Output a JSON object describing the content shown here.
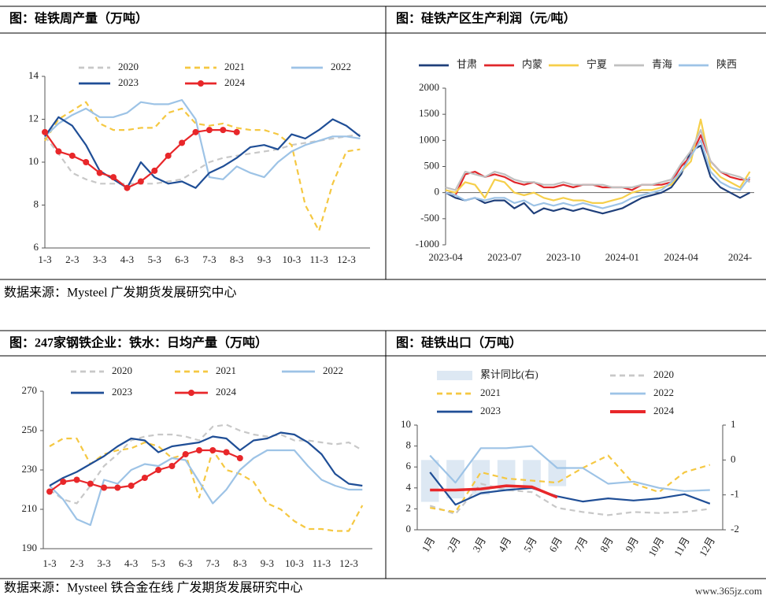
{
  "chart_data": [
    {
      "type": "line",
      "title": "图：硅铁周产量（万吨）",
      "categories": [
        "1-3",
        null,
        "2-3",
        null,
        "3-3",
        null,
        "4-3",
        null,
        "5-3",
        null,
        "6-3",
        null,
        "7-3",
        null,
        "8-3",
        null,
        "9-3",
        null,
        "10-3",
        null,
        "11-3",
        null,
        "12-3",
        null
      ],
      "ylim": [
        6,
        14
      ],
      "yticks": [
        6,
        8,
        10,
        12,
        14
      ],
      "series": [
        {
          "name": "2020",
          "color": "#c8c8c8",
          "line_style": "dashed",
          "values": [
            11.2,
            10.4,
            9.5,
            9.2,
            9.0,
            9.0,
            9.0,
            9.0,
            9.0,
            9.1,
            9.2,
            9.6,
            10.0,
            10.2,
            10.3,
            10.4,
            10.5,
            10.6,
            10.8,
            10.9,
            11.0,
            11.1,
            11.2,
            11.3
          ]
        },
        {
          "name": "2021",
          "color": "#f5c842",
          "line_style": "dashed",
          "values": [
            11.0,
            12.0,
            12.4,
            12.8,
            11.8,
            11.5,
            11.5,
            11.6,
            11.6,
            12.3,
            12.5,
            11.8,
            11.7,
            11.8,
            11.6,
            11.5,
            11.5,
            11.3,
            10.8,
            8.0,
            6.8,
            9.0,
            10.5,
            10.6
          ]
        },
        {
          "name": "2022",
          "color": "#9dc3e6",
          "line_style": "solid",
          "values": [
            11.2,
            11.8,
            12.2,
            12.5,
            12.1,
            12.1,
            12.3,
            12.8,
            12.7,
            12.7,
            12.9,
            12.0,
            9.3,
            9.2,
            9.8,
            9.5,
            9.3,
            10.0,
            10.5,
            10.8,
            11.0,
            11.2,
            11.2,
            11.1
          ]
        },
        {
          "name": "2023",
          "color": "#1f4e96",
          "line_style": "solid",
          "values": [
            11.2,
            12.1,
            11.7,
            10.8,
            9.6,
            9.2,
            8.8,
            10.0,
            9.3,
            9.0,
            9.1,
            8.8,
            9.5,
            9.8,
            10.2,
            10.7,
            10.8,
            10.6,
            11.3,
            11.1,
            11.5,
            12.0,
            11.7,
            11.2
          ]
        },
        {
          "name": "2024",
          "color": "#e8272a",
          "line_style": "solid",
          "marker": "circle",
          "values": [
            11.4,
            10.5,
            10.3,
            10.0,
            9.5,
            9.3,
            8.8,
            9.1,
            9.6,
            10.3,
            10.9,
            11.4,
            11.5,
            11.5,
            11.4,
            null,
            null,
            null,
            null,
            null,
            null,
            null,
            null,
            null
          ]
        }
      ]
    },
    {
      "type": "line",
      "title": "图：硅铁产区生产利润（元/吨）",
      "categories": [
        "2023-04",
        null,
        null,
        null,
        null,
        null,
        "2023-07",
        null,
        null,
        null,
        null,
        null,
        "2023-10",
        null,
        null,
        null,
        null,
        null,
        "2024-01",
        null,
        null,
        null,
        null,
        null,
        "2024-04",
        null,
        null,
        null,
        null,
        null,
        "2024-",
        null
      ],
      "ylim": [
        -1000,
        2000
      ],
      "yticks": [
        -1000,
        -500,
        0,
        500,
        1000,
        1500,
        2000
      ],
      "series": [
        {
          "name": "甘肃",
          "color": "#1f3f7a",
          "line_style": "solid",
          "values": [
            0,
            -100,
            -150,
            -100,
            -200,
            -150,
            -150,
            -300,
            -200,
            -400,
            -300,
            -350,
            -300,
            -350,
            -300,
            -350,
            -400,
            -350,
            -300,
            -200,
            -100,
            -50,
            0,
            100,
            350,
            800,
            900,
            300,
            100,
            0,
            -100,
            0
          ]
        },
        {
          "name": "内蒙",
          "color": "#e0262a",
          "line_style": "solid",
          "values": [
            0,
            -50,
            350,
            400,
            300,
            350,
            300,
            200,
            150,
            200,
            100,
            100,
            150,
            100,
            150,
            150,
            100,
            100,
            100,
            50,
            150,
            150,
            150,
            200,
            500,
            700,
            1100,
            600,
            400,
            300,
            250,
            250
          ]
        },
        {
          "name": "宁夏",
          "color": "#f6cf4a",
          "line_style": "solid",
          "values": [
            50,
            0,
            200,
            150,
            -100,
            250,
            200,
            0,
            -50,
            0,
            -100,
            -150,
            -100,
            -150,
            -150,
            -200,
            -200,
            -150,
            -100,
            0,
            50,
            50,
            100,
            150,
            400,
            600,
            1400,
            500,
            300,
            200,
            100,
            400
          ]
        },
        {
          "name": "青海",
          "color": "#c0c0c0",
          "line_style": "solid",
          "values": [
            100,
            50,
            400,
            350,
            300,
            400,
            350,
            250,
            200,
            200,
            150,
            150,
            200,
            150,
            150,
            150,
            150,
            100,
            100,
            100,
            150,
            150,
            200,
            250,
            550,
            800,
            1200,
            600,
            400,
            350,
            300,
            200
          ]
        },
        {
          "name": "陕西",
          "color": "#9dc3e6",
          "line_style": "solid",
          "values": [
            0,
            -50,
            -150,
            -100,
            -150,
            -100,
            -100,
            -200,
            -150,
            -250,
            -200,
            -250,
            -200,
            -250,
            -200,
            -250,
            -300,
            -250,
            -200,
            -100,
            -50,
            0,
            50,
            200,
            400,
            700,
            1000,
            400,
            200,
            100,
            50,
            300
          ]
        }
      ]
    },
    {
      "type": "line",
      "title": "图：247家钢铁企业：铁水：日均产量（万吨）",
      "categories": [
        "1-3",
        null,
        "2-3",
        null,
        "3-3",
        null,
        "4-3",
        null,
        "5-3",
        null,
        "6-3",
        null,
        "7-3",
        null,
        "8-3",
        null,
        "9-3",
        null,
        "10-3",
        null,
        "11-3",
        null,
        "12-3",
        null
      ],
      "ylim": [
        190,
        270
      ],
      "yticks": [
        190,
        210,
        230,
        250,
        270
      ],
      "series": [
        {
          "name": "2020",
          "color": "#c8c8c8",
          "line_style": "dashed",
          "values": [
            220,
            215,
            213,
            222,
            232,
            238,
            245,
            247,
            248,
            248,
            247,
            245,
            252,
            253,
            250,
            248,
            247,
            248,
            245,
            245,
            244,
            243,
            244,
            240
          ]
        },
        {
          "name": "2021",
          "color": "#f5c842",
          "line_style": "dashed",
          "values": [
            242,
            246,
            246,
            233,
            238,
            240,
            241,
            244,
            242,
            236,
            238,
            216,
            240,
            230,
            228,
            224,
            213,
            210,
            204,
            200,
            200,
            199,
            199,
            212
          ]
        },
        {
          "name": "2022",
          "color": "#9dc3e6",
          "line_style": "solid",
          "values": [
            222,
            215,
            205,
            202,
            225,
            223,
            230,
            233,
            232,
            236,
            235,
            224,
            213,
            220,
            230,
            236,
            240,
            240,
            240,
            232,
            225,
            222,
            220,
            220
          ]
        },
        {
          "name": "2023",
          "color": "#1f4e96",
          "line_style": "solid",
          "values": [
            222,
            226,
            229,
            233,
            237,
            242,
            246,
            245,
            239,
            242,
            243,
            244,
            247,
            246,
            240,
            245,
            246,
            249,
            248,
            244,
            238,
            228,
            223,
            222
          ]
        },
        {
          "name": "2024",
          "color": "#e8272a",
          "line_style": "solid",
          "marker": "circle",
          "values": [
            219,
            224,
            225,
            223,
            221,
            221,
            222,
            226,
            230,
            232,
            238,
            240,
            240,
            239,
            236,
            null,
            null,
            null,
            null,
            null,
            null,
            null,
            null,
            null
          ]
        }
      ]
    },
    {
      "type": "line",
      "title": "图：硅铁出口（万吨）",
      "categories": [
        "1月",
        "2月",
        "3月",
        "4月",
        "5月",
        "6月",
        "7月",
        "8月",
        "9月",
        "10月",
        "11月",
        "12月"
      ],
      "ylim": [
        0,
        10
      ],
      "yticks": [
        0,
        2,
        4,
        6,
        8,
        10
      ],
      "y2lim": [
        -2,
        1
      ],
      "y2ticks": [
        -2,
        -1,
        0,
        1
      ],
      "series": [
        {
          "name": "累计同比(右)",
          "type": "bar",
          "axis": "y2",
          "color": "#dde8f3",
          "values": [
            -1.2,
            -1.1,
            -1.0,
            -0.9,
            -0.85,
            -0.75,
            null,
            null,
            null,
            null,
            null,
            null
          ]
        },
        {
          "name": "2020",
          "color": "#c8c8c8",
          "line_style": "dashed",
          "values": [
            2.3,
            1.5,
            4.4,
            3.8,
            3.6,
            2.1,
            1.7,
            1.4,
            1.7,
            1.6,
            1.7,
            2.0
          ]
        },
        {
          "name": "2021",
          "color": "#f5c842",
          "line_style": "dashed",
          "values": [
            2.1,
            1.7,
            5.5,
            4.9,
            4.7,
            4.5,
            5.9,
            7.1,
            4.4,
            3.6,
            5.5,
            6.2
          ]
        },
        {
          "name": "2022",
          "color": "#9dc3e6",
          "line_style": "solid",
          "values": [
            7.1,
            4.5,
            7.8,
            7.8,
            8.0,
            5.9,
            5.9,
            4.4,
            4.6,
            4.0,
            3.7,
            3.8
          ]
        },
        {
          "name": "2023",
          "color": "#1f4e96",
          "line_style": "solid",
          "values": [
            5.5,
            2.4,
            3.5,
            3.8,
            4.0,
            3.2,
            2.7,
            3.0,
            2.8,
            3.0,
            3.4,
            2.5
          ]
        },
        {
          "name": "2024",
          "color": "#e8272a",
          "line_style": "thick",
          "values": [
            3.8,
            3.8,
            3.9,
            4.2,
            4.1,
            3.1,
            null,
            null,
            null,
            null,
            null,
            null
          ]
        }
      ]
    }
  ],
  "sources": [
    "数据来源：Mysteel 广发期货发展研究中心",
    "数据来源：Mysteel 铁合金在线 广发期货发展研究中心"
  ],
  "watermark": "www.365jz.com"
}
